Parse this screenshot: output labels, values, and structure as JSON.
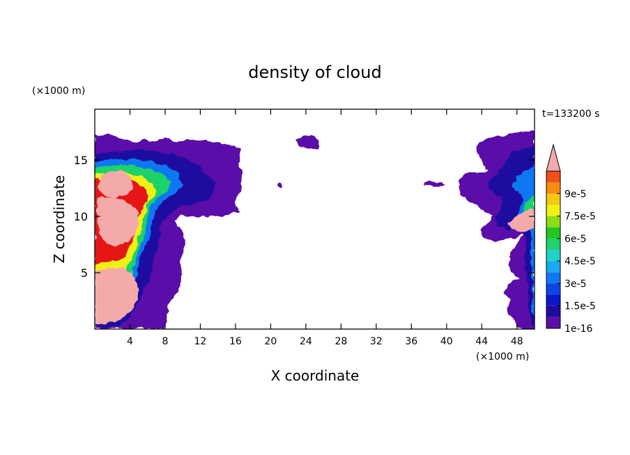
{
  "chart_data": {
    "type": "heatmap",
    "title": "density of cloud",
    "xlabel": "X coordinate",
    "ylabel": "Z coordinate",
    "x_unit": "(×1000 m)",
    "z_unit": "(×1000 m)",
    "time_label": "t=133200 s",
    "xlim": [
      0,
      50
    ],
    "zlim": [
      0,
      19.5
    ],
    "x_ticks": [
      4,
      8,
      12,
      16,
      20,
      24,
      28,
      32,
      36,
      40,
      44,
      48
    ],
    "z_ticks": [
      5,
      10,
      15
    ],
    "colorbar": {
      "tick_labels": [
        "1e-16",
        "1.5e-5",
        "3e-5",
        "4.5e-5",
        "6e-5",
        "7.5e-5",
        "9e-5"
      ],
      "tick_values": [
        0,
        1.5e-05,
        3e-05,
        4.5e-05,
        6e-05,
        7.5e-05,
        9e-05
      ],
      "levels": [
        0,
        7.5e-06,
        1.5e-05,
        2.25e-05,
        3e-05,
        3.75e-05,
        4.5e-05,
        5.25e-05,
        6e-05,
        6.75e-05,
        7.5e-05,
        8.25e-05,
        9e-05,
        9.75e-05,
        0.000105
      ],
      "colors": [
        "#5a0fa8",
        "#1f0aa0",
        "#0a18c8",
        "#0b46e6",
        "#0f78f2",
        "#19aaf0",
        "#22d2c8",
        "#1fd26a",
        "#22c81e",
        "#8edc14",
        "#f0f014",
        "#f4c812",
        "#f78a10",
        "#f2501a",
        "#e61414"
      ],
      "over_color": "#f4aaaa",
      "extend": "max"
    },
    "grid": false,
    "legend": "colorbar-right"
  }
}
